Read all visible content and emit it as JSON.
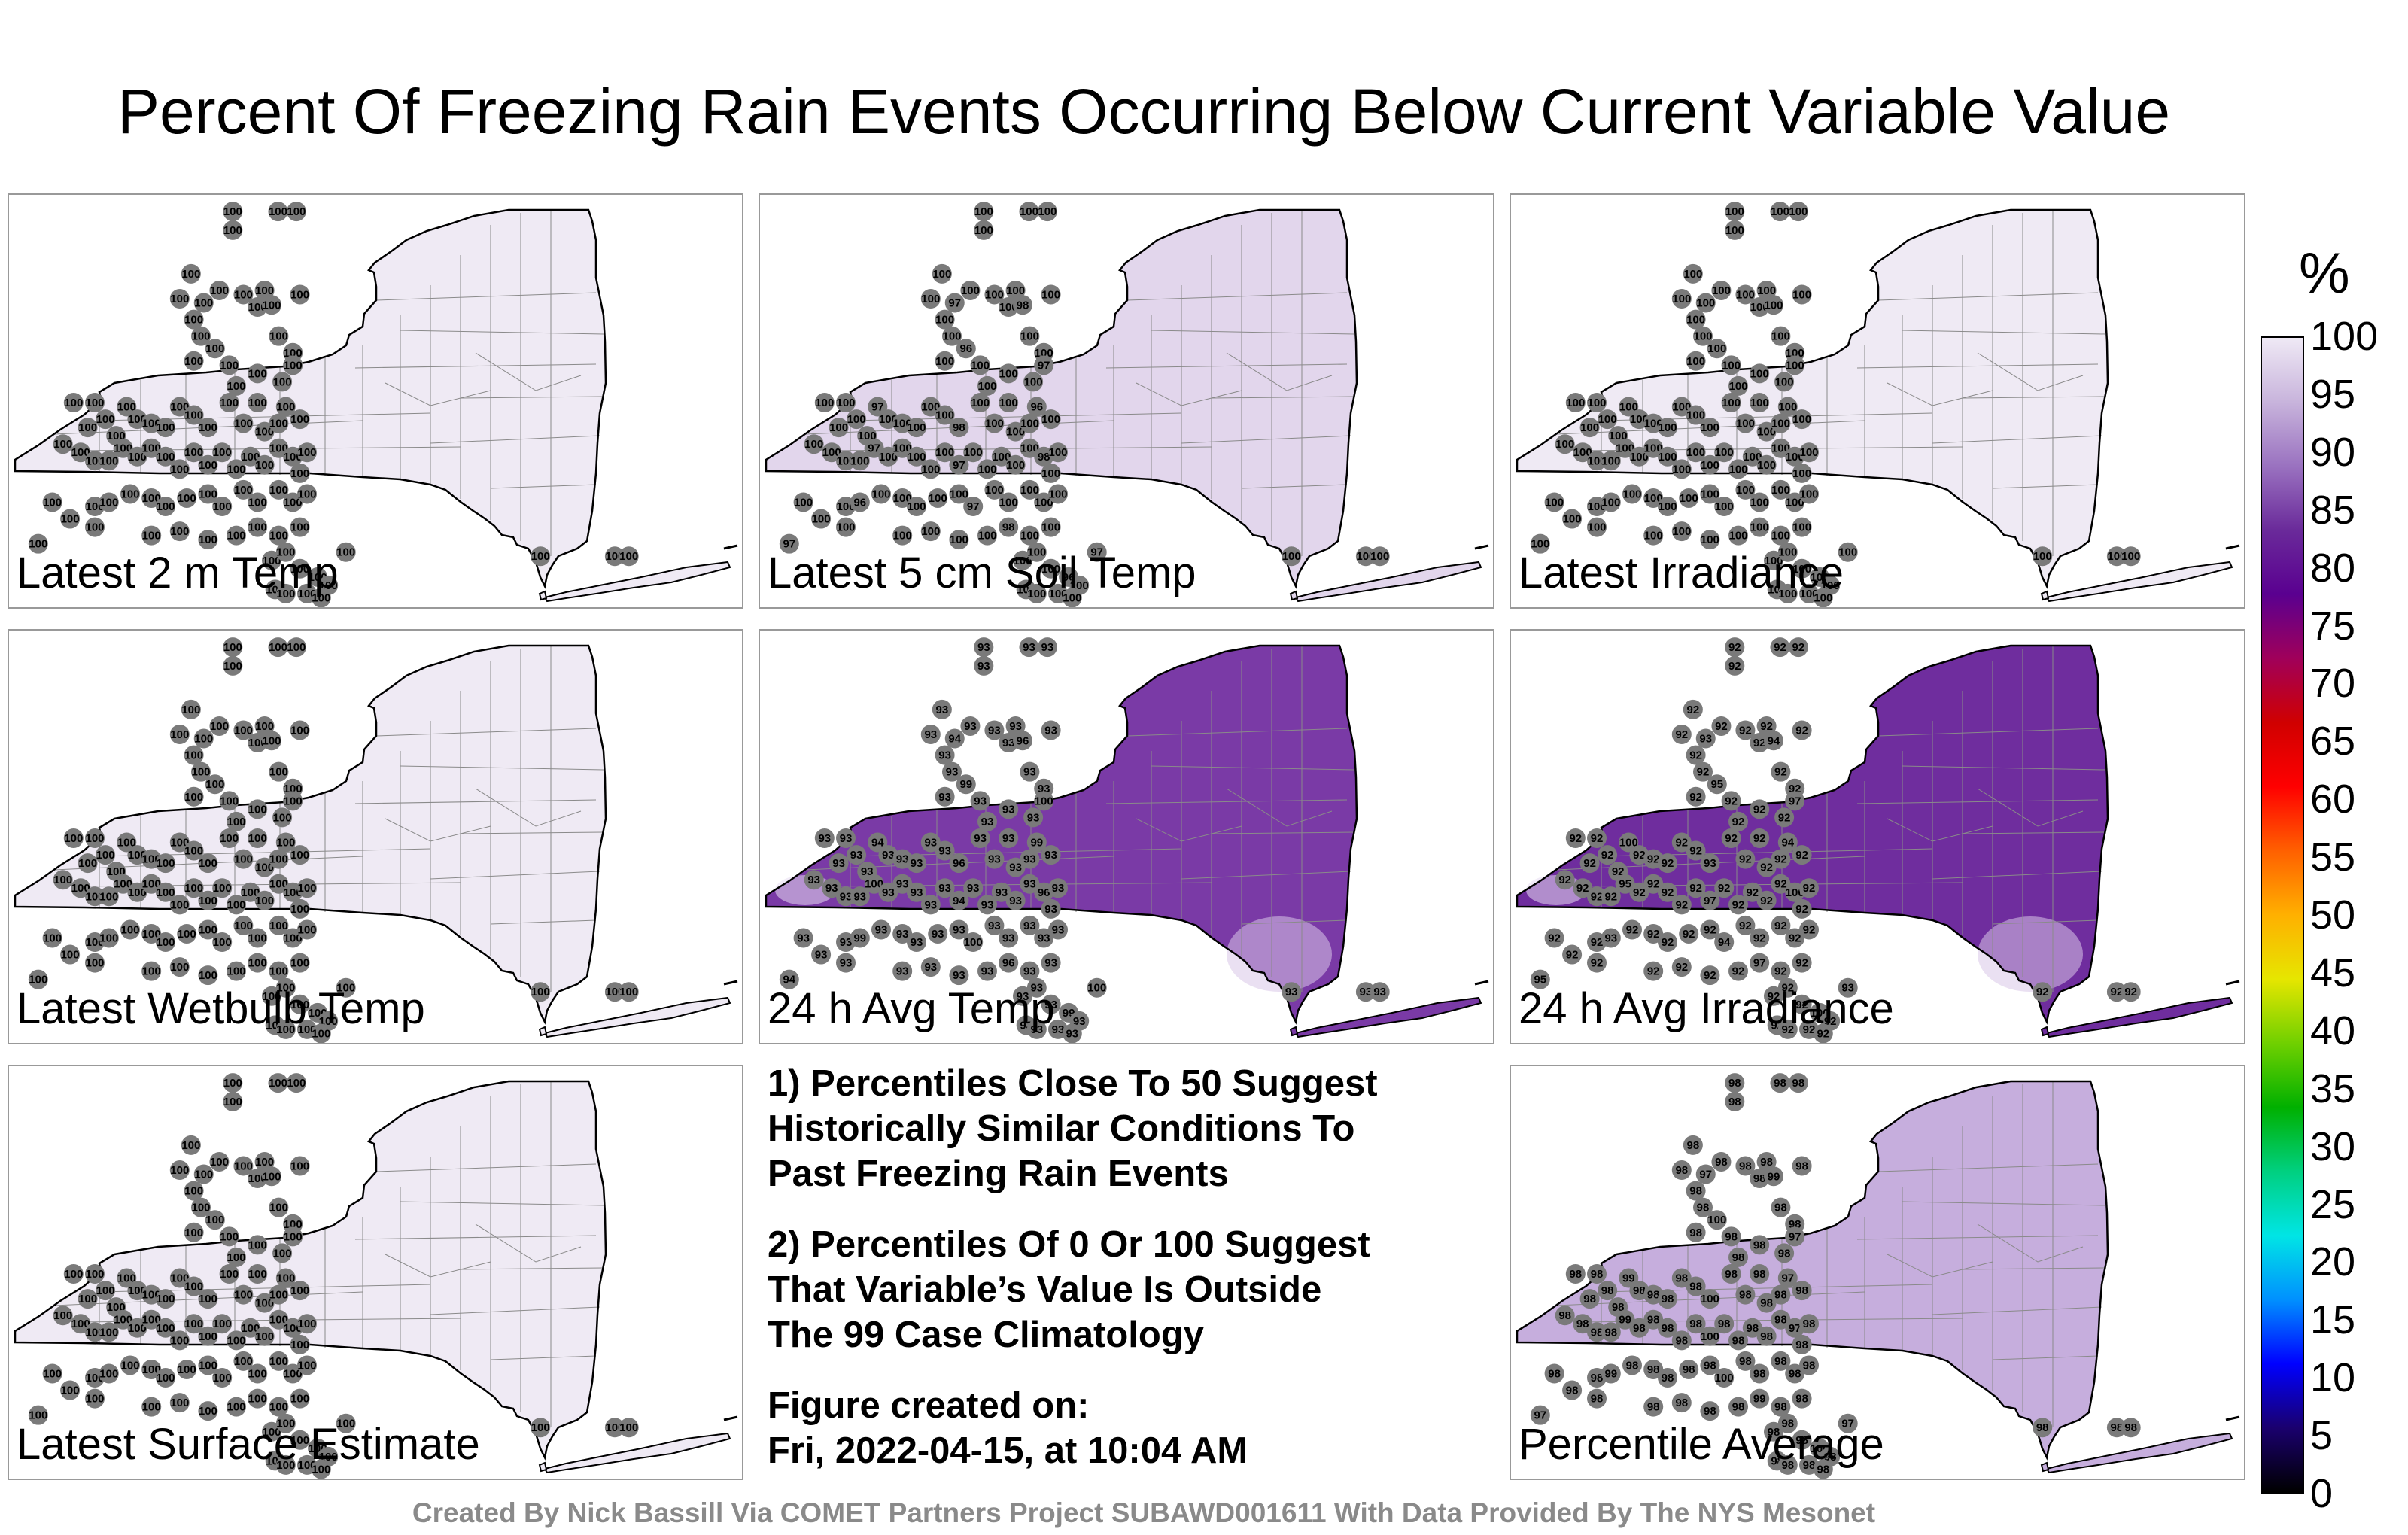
{
  "title": "Percent Of Freezing Rain Events Occurring Below Current Variable Value",
  "colorbar": {
    "unit": "%",
    "ticks": [
      "100",
      "95",
      "90",
      "85",
      "80",
      "75",
      "70",
      "65",
      "60",
      "55",
      "50",
      "45",
      "40",
      "35",
      "30",
      "25",
      "20",
      "15",
      "10",
      "5",
      "0"
    ],
    "stops": [
      "#000000",
      "#1a006e",
      "#0000ff",
      "#0090ff",
      "#00e5e5",
      "#00d080",
      "#00b000",
      "#70d000",
      "#e6e600",
      "#ffb000",
      "#ff6000",
      "#ff0000",
      "#d00000",
      "#a0005a",
      "#5a0090",
      "#6a2a9a",
      "#9a72c0",
      "#c8b4dc",
      "#efe9f5"
    ]
  },
  "chart_data": [
    {
      "type": "map",
      "panel": "Latest 2 m Temp",
      "range": [
        0,
        100
      ],
      "station_values": {
        "all": "100"
      },
      "shade": "#efeaf4"
    },
    {
      "type": "map",
      "panel": "Latest 5 cm Soil Temp",
      "range": [
        0,
        100
      ],
      "station_values": {
        "typical": "100",
        "others": [
          "97",
          "98",
          "96",
          "97"
        ]
      },
      "shade": "#e2d6ec"
    },
    {
      "type": "map",
      "panel": "Latest Irradiance",
      "range": [
        0,
        100
      ],
      "station_values": {
        "all": "100"
      },
      "shade": "#efeaf4"
    },
    {
      "type": "map",
      "panel": "Latest Wetbulb Temp",
      "range": [
        0,
        100
      ],
      "station_values": {
        "all": "100"
      },
      "shade": "#efeaf4"
    },
    {
      "type": "map",
      "panel": "24 h Avg Temp",
      "range": [
        0,
        100
      ],
      "station_values": {
        "typical": "93",
        "others": [
          "94",
          "96",
          "99",
          "100"
        ]
      },
      "shade": "#7a3aa6"
    },
    {
      "type": "map",
      "panel": "24 h Avg Irradiance",
      "range": [
        0,
        100
      ],
      "station_values": {
        "typical": "92",
        "others": [
          "93",
          "94",
          "95",
          "97",
          "100"
        ]
      },
      "shade": "#6f2d9e"
    },
    {
      "type": "map",
      "panel": "Latest Surface Estimate",
      "range": [
        0,
        100
      ],
      "station_values": {
        "all": "100"
      },
      "shade": "#efeaf4"
    },
    {
      "type": "map",
      "panel": "Percentile Average",
      "range": [
        0,
        100
      ],
      "station_values": {
        "typical": "98",
        "others": [
          "97",
          "99",
          "100"
        ]
      },
      "shade": "#c6aedd"
    }
  ],
  "panels": {
    "p1": {
      "label": "Latest 2 m Temp"
    },
    "p2": {
      "label": "Latest 5 cm Soil Temp"
    },
    "p3": {
      "label": "Latest Irradiance"
    },
    "p4": {
      "label": "Latest Wetbulb Temp"
    },
    "p5": {
      "label": "24 h Avg Temp"
    },
    "p6": {
      "label": "24 h Avg Irradiance"
    },
    "p7": {
      "label": "Latest Surface Estimate"
    },
    "p8": {
      "label": "Percentile Average"
    }
  },
  "notes": {
    "line1": "1) Percentiles Close To 50 Suggest",
    "line2": "Historically Similar Conditions To",
    "line3": "Past Freezing Rain Events",
    "line4": "2) Percentiles Of 0 Or 100 Suggest",
    "line5": "That Variable’s Value Is Outside",
    "line6": "The 99 Case Climatology",
    "line7": "Figure created on:",
    "line8": "Fri, 2022-04-15, at 10:04 AM"
  },
  "credit": "Created By Nick Bassill Via COMET Partners Project SUBAWD001611 With Data Provided By The NYS Mesonet"
}
